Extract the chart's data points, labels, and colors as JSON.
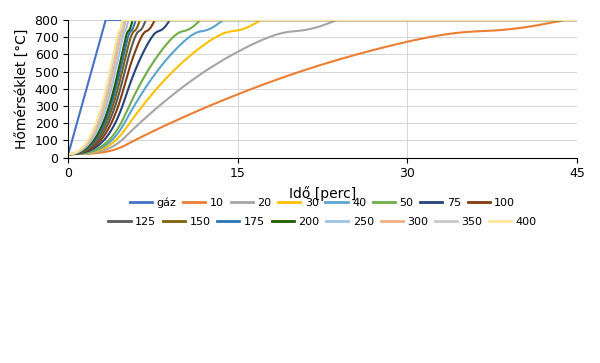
{
  "title": "",
  "xlabel": "Idő [perc]",
  "ylabel": "Hőmérséklet [°C]",
  "xlim": [
    0,
    45
  ],
  "ylim": [
    0,
    800
  ],
  "xticks": [
    0,
    15,
    30,
    45
  ],
  "yticks": [
    0,
    100,
    200,
    300,
    400,
    500,
    600,
    700,
    800
  ],
  "legend_row1": [
    "gáz",
    "10",
    "20",
    "30",
    "40",
    "50",
    "75",
    "100"
  ],
  "legend_row2": [
    "125",
    "150",
    "175",
    "200",
    "250",
    "300",
    "350",
    "400"
  ],
  "colors": {
    "gáz": "#4472C4",
    "10": "#ED7D31",
    "20": "#A5A5A5",
    "30": "#FFC000",
    "40": "#5BA3D0",
    "50": "#70AD47",
    "75": "#264478",
    "100": "#843C0C",
    "125": "#595959",
    "150": "#806000",
    "175": "#2E74B5",
    "200": "#1F5C00",
    "250": "#9DC3E6",
    "300": "#F4B183",
    "350": "#C9C9C9",
    "400": "#FFE699"
  },
  "section_factors": [
    null,
    10,
    20,
    30,
    40,
    50,
    75,
    100,
    125,
    150,
    175,
    200,
    250,
    300,
    350,
    400
  ],
  "figsize": [
    6.0,
    3.63
  ],
  "dpi": 100
}
